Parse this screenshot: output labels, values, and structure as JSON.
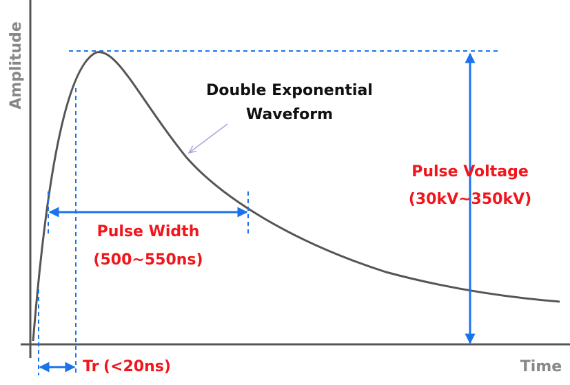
{
  "axes": {
    "y_label": "Amplitude",
    "x_label": "Time"
  },
  "waveform": {
    "label_lines": [
      "Double Exponential",
      "Waveform"
    ]
  },
  "pulse_width": {
    "label": "Pulse Width",
    "range": "(500~550ns)"
  },
  "pulse_voltage": {
    "label": "Pulse Voltage",
    "range": "(30kV~350kV)"
  },
  "rise_time": {
    "label": "Tr",
    "range": "(<20ns)"
  }
}
